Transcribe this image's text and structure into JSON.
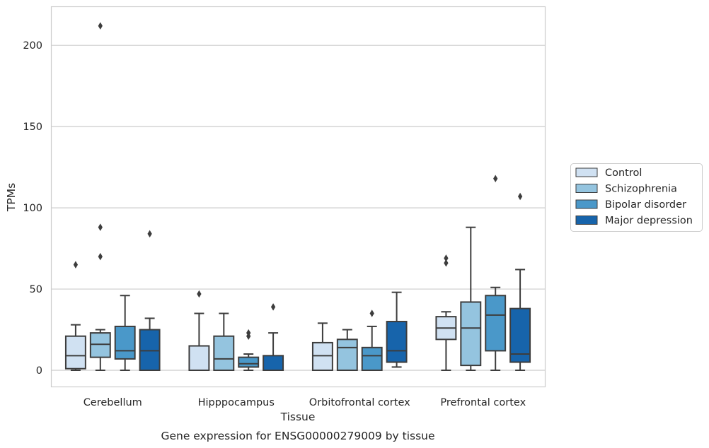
{
  "chart_data": {
    "type": "box",
    "title": "",
    "caption": "Gene expression for ENSG00000279009 by tissue",
    "xlabel": "Tissue",
    "ylabel": "TPMs",
    "ylim": [
      -10,
      224
    ],
    "yticks": [
      0,
      50,
      100,
      150,
      200
    ],
    "grid": "horizontal",
    "legend_position": "right",
    "categories": [
      "Cerebellum",
      "Hipppocampus",
      "Orbitofrontal cortex",
      "Prefrontal cortex"
    ],
    "series": [
      {
        "name": "Control",
        "color": "#d0e1f2",
        "boxes": [
          {
            "whislo": 0,
            "q1": 1,
            "med": 9,
            "q3": 21,
            "whishi": 28,
            "fliers": [
              65
            ]
          },
          {
            "whislo": 0,
            "q1": 0,
            "med": 0,
            "q3": 15,
            "whishi": 35,
            "fliers": [
              47
            ]
          },
          {
            "whislo": 0,
            "q1": 0,
            "med": 9,
            "q3": 17,
            "whishi": 29,
            "fliers": []
          },
          {
            "whislo": 0,
            "q1": 19,
            "med": 26,
            "q3": 33,
            "whishi": 36,
            "fliers": [
              66,
              69
            ]
          }
        ]
      },
      {
        "name": "Schizophrenia",
        "color": "#94c4df",
        "boxes": [
          {
            "whislo": 0,
            "q1": 8,
            "med": 16,
            "q3": 23,
            "whishi": 25,
            "fliers": [
              70,
              88,
              212
            ]
          },
          {
            "whislo": 0,
            "q1": 0,
            "med": 7,
            "q3": 21,
            "whishi": 35,
            "fliers": []
          },
          {
            "whislo": 0,
            "q1": 0,
            "med": 14,
            "q3": 19,
            "whishi": 25,
            "fliers": []
          },
          {
            "whislo": 0,
            "q1": 3,
            "med": 26,
            "q3": 42,
            "whishi": 88,
            "fliers": []
          }
        ]
      },
      {
        "name": "Bipolar disorder",
        "color": "#4a98c9",
        "boxes": [
          {
            "whislo": 0,
            "q1": 7,
            "med": 12,
            "q3": 27,
            "whishi": 46,
            "fliers": []
          },
          {
            "whislo": 0,
            "q1": 2,
            "med": 4,
            "q3": 8,
            "whishi": 10,
            "fliers": [
              21,
              23
            ]
          },
          {
            "whislo": 0,
            "q1": 0,
            "med": 9,
            "q3": 14,
            "whishi": 27,
            "fliers": [
              35
            ]
          },
          {
            "whislo": 0,
            "q1": 12,
            "med": 34,
            "q3": 46,
            "whishi": 51,
            "fliers": [
              118
            ]
          }
        ]
      },
      {
        "name": "Major depression",
        "color": "#1764ab",
        "boxes": [
          {
            "whislo": 0,
            "q1": 0,
            "med": 12,
            "q3": 25,
            "whishi": 32,
            "fliers": [
              84
            ]
          },
          {
            "whislo": 0,
            "q1": 0,
            "med": 0,
            "q3": 9,
            "whishi": 23,
            "fliers": [
              39
            ]
          },
          {
            "whislo": 2,
            "q1": 5,
            "med": 12,
            "q3": 30,
            "whishi": 48,
            "fliers": []
          },
          {
            "whislo": 0,
            "q1": 5,
            "med": 10,
            "q3": 38,
            "whishi": 62,
            "fliers": [
              107
            ]
          }
        ]
      }
    ]
  }
}
